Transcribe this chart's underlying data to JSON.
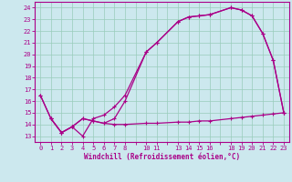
{
  "xlabel": "Windchill (Refroidissement éolien,°C)",
  "bg_color": "#cce8ee",
  "line_color": "#aa0088",
  "grid_color": "#99ccbb",
  "xlim": [
    -0.5,
    23.5
  ],
  "ylim": [
    12.5,
    24.5
  ],
  "xticks_all": [
    0,
    1,
    2,
    3,
    4,
    5,
    6,
    7,
    8,
    9,
    10,
    11,
    12,
    13,
    14,
    15,
    16,
    17,
    18,
    19,
    20,
    21,
    22,
    23
  ],
  "xtick_labels": [
    "0",
    "1",
    "2",
    "3",
    "4",
    "5",
    "6",
    "7",
    "8",
    "",
    "10",
    "11",
    "",
    "13",
    "14",
    "15",
    "16",
    "",
    "18",
    "19",
    "20",
    "21",
    "22",
    "23"
  ],
  "yticks": [
    13,
    14,
    15,
    16,
    17,
    18,
    19,
    20,
    21,
    22,
    23,
    24
  ],
  "line1_x": [
    0,
    1,
    2,
    3,
    4,
    5,
    6,
    7,
    8,
    10,
    11,
    13,
    14,
    15,
    16,
    18,
    19,
    20,
    21,
    22,
    23
  ],
  "line1_y": [
    16.5,
    14.5,
    13.3,
    13.8,
    13.0,
    14.5,
    14.8,
    15.5,
    16.5,
    20.2,
    21.0,
    22.8,
    23.2,
    23.3,
    23.4,
    24.0,
    23.8,
    23.3,
    21.8,
    19.5,
    15.0
  ],
  "line2_x": [
    0,
    1,
    2,
    3,
    4,
    5,
    6,
    7,
    8,
    10,
    11,
    13,
    14,
    15,
    16,
    18,
    19,
    20,
    21,
    22,
    23
  ],
  "line2_y": [
    16.5,
    14.5,
    13.3,
    13.8,
    14.5,
    14.3,
    14.1,
    14.0,
    14.0,
    14.1,
    14.1,
    14.2,
    14.2,
    14.3,
    14.3,
    14.5,
    14.6,
    14.7,
    14.8,
    14.9,
    15.0
  ],
  "line3_x": [
    1,
    2,
    3,
    4,
    5,
    6,
    7,
    8,
    10,
    11,
    13,
    14,
    15,
    16,
    18,
    19,
    20,
    21,
    22,
    23
  ],
  "line3_y": [
    14.5,
    13.3,
    13.8,
    14.5,
    14.3,
    14.1,
    14.5,
    16.0,
    20.2,
    21.0,
    22.8,
    23.2,
    23.3,
    23.4,
    24.0,
    23.8,
    23.3,
    21.8,
    19.5,
    15.0
  ]
}
